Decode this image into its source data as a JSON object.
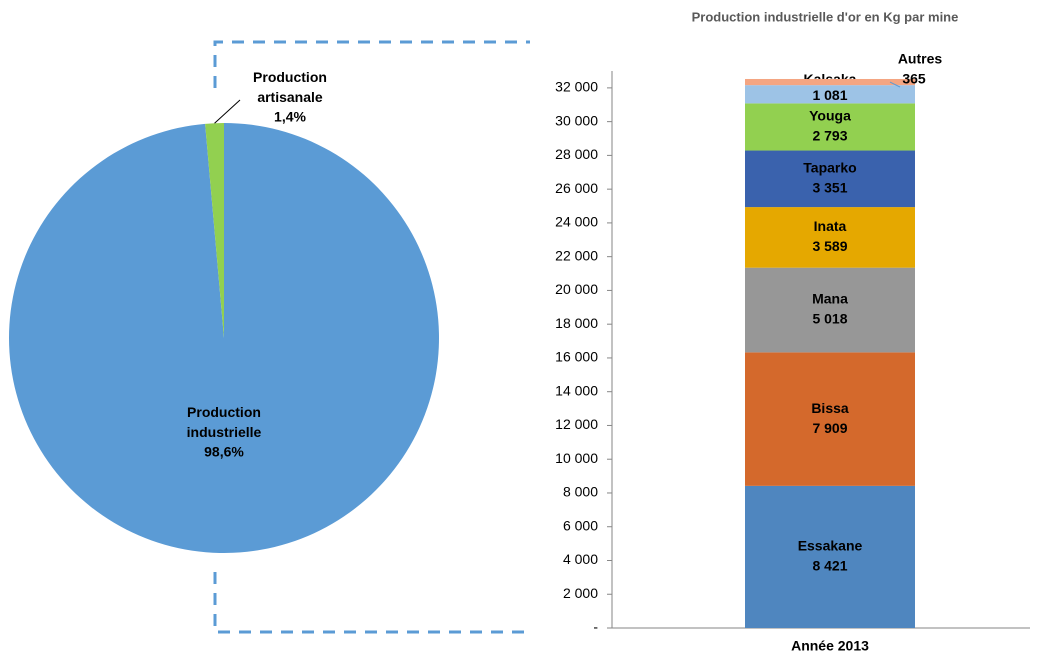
{
  "chart_data": [
    {
      "type": "pie",
      "categories": [
        "Production industrielle",
        "Production artisanale"
      ],
      "values": [
        98.6,
        1.4
      ],
      "value_labels": [
        "98,6%",
        "1,4%"
      ],
      "colors": [
        "#5b9bd5",
        "#92d050"
      ]
    },
    {
      "type": "stacked_bar",
      "title": "Production industrielle d'or en Kg par mine",
      "categories": [
        "Année 2013"
      ],
      "series": [
        {
          "name": "Essakane",
          "color": "#4f86bf",
          "values": [
            8421
          ],
          "value_labels": [
            "8 421"
          ]
        },
        {
          "name": "Bissa",
          "color": "#d4692c",
          "values": [
            7909
          ],
          "value_labels": [
            "7 909"
          ]
        },
        {
          "name": "Mana",
          "color": "#979797",
          "values": [
            5018
          ],
          "value_labels": [
            "5 018"
          ]
        },
        {
          "name": "Inata",
          "color": "#e5a800",
          "values": [
            3589
          ],
          "value_labels": [
            "3 589"
          ]
        },
        {
          "name": "Taparko",
          "color": "#3a62ad",
          "values": [
            3351
          ],
          "value_labels": [
            "3 351"
          ]
        },
        {
          "name": "Youga",
          "color": "#92d050",
          "values": [
            2793
          ],
          "value_labels": [
            "2 793"
          ]
        },
        {
          "name": "Kalsaka",
          "color": "#9dc3e6",
          "values": [
            1081
          ],
          "value_labels": [
            "1 081"
          ]
        },
        {
          "name": "Autres",
          "color": "#f4a582",
          "values": [
            365
          ],
          "value_labels": [
            "365"
          ]
        }
      ],
      "ylim": [
        0,
        33000
      ],
      "yticks": [
        {
          "value": 0,
          "label": "-"
        },
        {
          "value": 2000,
          "label": "2 000"
        },
        {
          "value": 4000,
          "label": "4 000"
        },
        {
          "value": 6000,
          "label": "6 000"
        },
        {
          "value": 8000,
          "label": "8 000"
        },
        {
          "value": 10000,
          "label": "10 000"
        },
        {
          "value": 12000,
          "label": "12 000"
        },
        {
          "value": 14000,
          "label": "14 000"
        },
        {
          "value": 16000,
          "label": "16 000"
        },
        {
          "value": 18000,
          "label": "18 000"
        },
        {
          "value": 20000,
          "label": "20 000"
        },
        {
          "value": 22000,
          "label": "22 000"
        },
        {
          "value": 24000,
          "label": "24 000"
        },
        {
          "value": 26000,
          "label": "26 000"
        },
        {
          "value": 28000,
          "label": "28 000"
        },
        {
          "value": 30000,
          "label": "30 000"
        },
        {
          "value": 32000,
          "label": "32 000"
        }
      ]
    }
  ]
}
